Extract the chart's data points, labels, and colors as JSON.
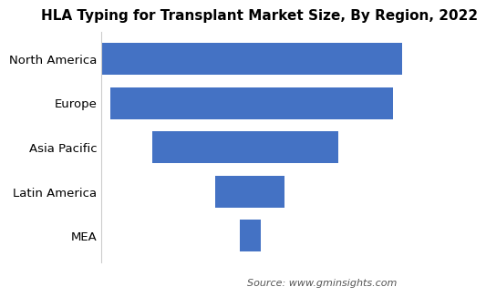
{
  "title": "HLA Typing for Transplant Market Size, By Region, 2022",
  "categories": [
    "North America",
    "Europe",
    "Asia Pacific",
    "Latin America",
    "MEA"
  ],
  "values": [
    100,
    94,
    62,
    23,
    7
  ],
  "lefts": [
    0,
    3,
    17,
    38,
    46
  ],
  "bar_color": "#4472c4",
  "background_color": "#ffffff",
  "source_text": "Source: www.gminsights.com",
  "title_fontsize": 11,
  "label_fontsize": 9.5,
  "source_fontsize": 8,
  "xlim": [
    0,
    105
  ]
}
